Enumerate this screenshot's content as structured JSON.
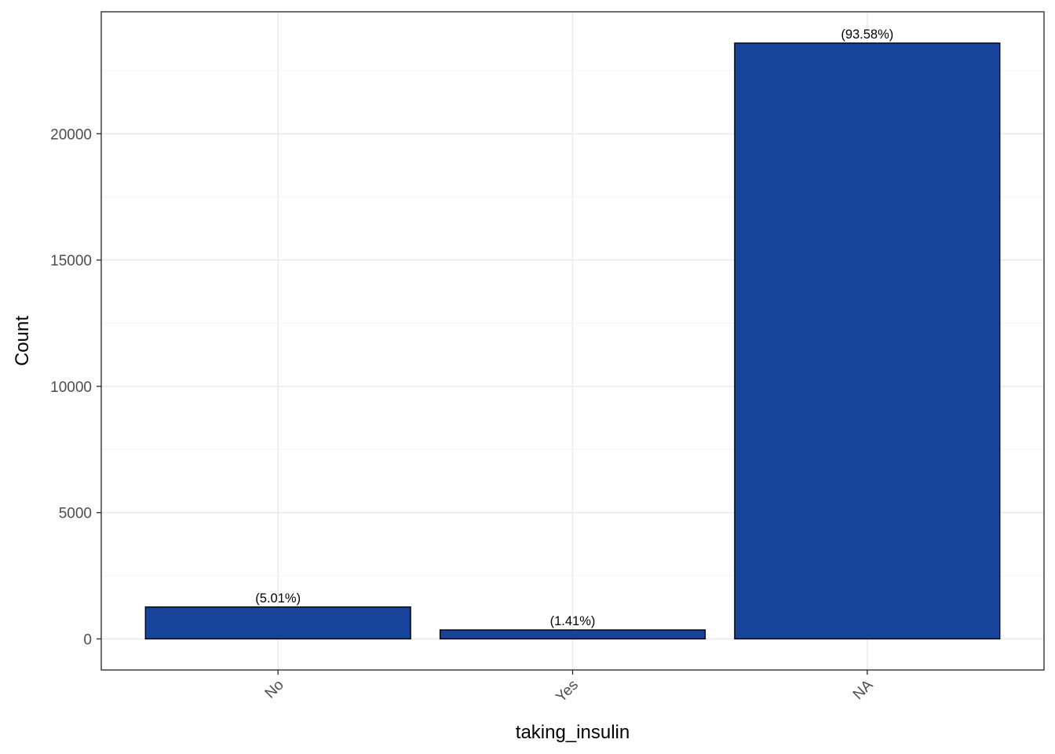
{
  "chart_data": {
    "type": "bar",
    "categories": [
      "No",
      "Yes",
      "NA"
    ],
    "values": [
      1263,
      355,
      23590
    ],
    "data_labels": [
      "(5.01%)",
      "(1.41%)",
      "(93.58%)"
    ],
    "title": "",
    "xlabel": "taking_insulin",
    "ylabel": "Count",
    "ylim": [
      -1230,
      24830
    ],
    "y_ticks": [
      0,
      5000,
      10000,
      15000,
      20000
    ],
    "y_tick_labels": [
      "0",
      "5000",
      "10000",
      "15000",
      "20000"
    ],
    "x_tick_labels": [
      "No",
      "Yes",
      "NA"
    ],
    "x_tick_rotation_deg": 45,
    "grid": true,
    "legend": "none",
    "colors": {
      "bar_fill": "#17449a",
      "bar_outline": "#000000",
      "grid_major": "#ebebeb",
      "grid_minor": "#f4f4f4",
      "panel_border": "#333333"
    }
  }
}
